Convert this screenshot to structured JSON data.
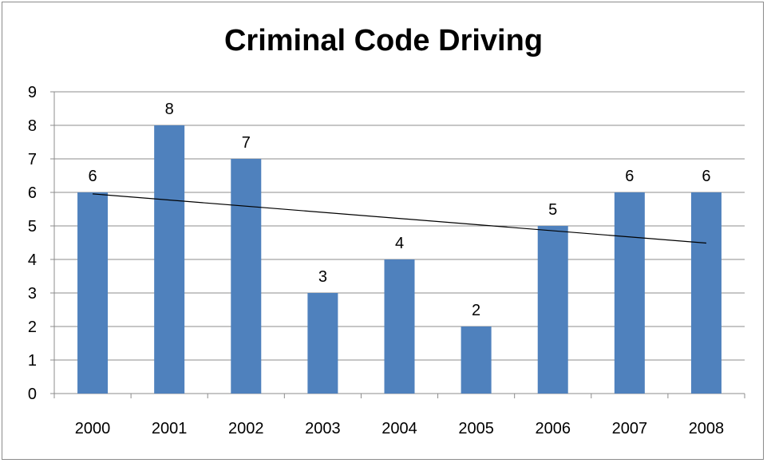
{
  "chart_data": {
    "type": "bar",
    "title": "Criminal Code Driving",
    "categories": [
      "2000",
      "2001",
      "2002",
      "2003",
      "2004",
      "2005",
      "2006",
      "2007",
      "2008"
    ],
    "values": [
      6,
      8,
      7,
      3,
      4,
      2,
      5,
      6,
      6
    ],
    "data_labels": [
      "6",
      "8",
      "7",
      "3",
      "4",
      "2",
      "5",
      "6",
      "6"
    ],
    "ylim": [
      0,
      9
    ],
    "y_ticks": [
      "0",
      "1",
      "2",
      "3",
      "4",
      "5",
      "6",
      "7",
      "8",
      "9"
    ],
    "grid": true,
    "legend": "none",
    "trendline": {
      "type": "linear",
      "color": "#000000"
    },
    "bar_color": "#4f81bd",
    "xlabel": "",
    "ylabel": ""
  }
}
